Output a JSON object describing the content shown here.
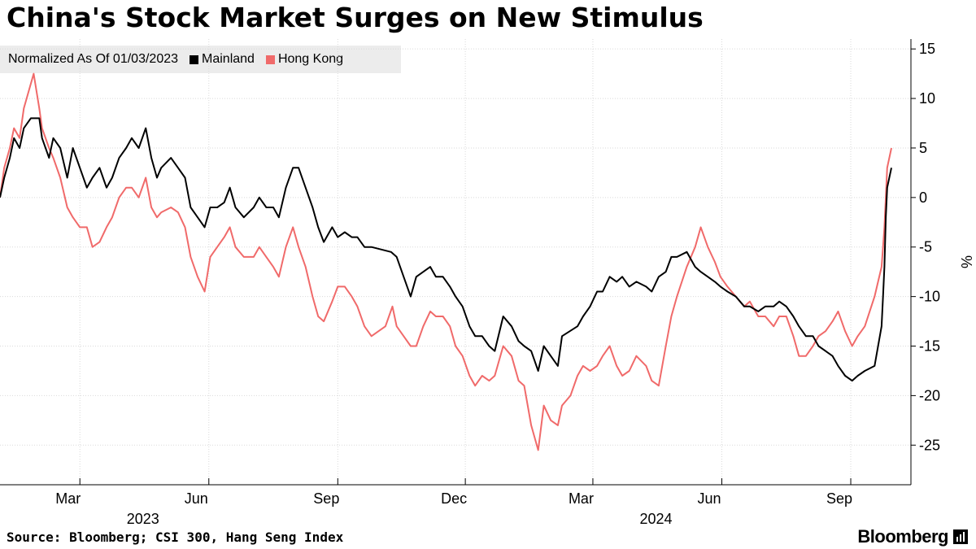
{
  "title": "China's Stock Market Surges on New Stimulus",
  "legend": {
    "note": "Normalized As Of 01/03/2023",
    "items": [
      {
        "label": "Mainland",
        "color": "#000000"
      },
      {
        "label": "Hong Kong",
        "color": "#f06a6a"
      }
    ]
  },
  "source": "Source: Bloomberg; CSI 300, Hang Seng Index",
  "brand": "Bloomberg",
  "chart_data": {
    "type": "line",
    "y_unit": "%",
    "ylim": [
      -29,
      16
    ],
    "yticks": [
      15,
      10,
      5,
      0,
      -5,
      -10,
      -15,
      -20,
      -25
    ],
    "xlim": [
      "2023-01-03",
      "2024-09-30"
    ],
    "xticks": [
      {
        "date": "2023-03-01",
        "label": "Mar"
      },
      {
        "date": "2023-06-01",
        "label": "Jun"
      },
      {
        "date": "2023-09-01",
        "label": "Sep"
      },
      {
        "date": "2023-12-01",
        "label": "Dec"
      },
      {
        "date": "2024-03-01",
        "label": "Mar"
      },
      {
        "date": "2024-06-01",
        "label": "Jun"
      },
      {
        "date": "2024-09-01",
        "label": "Sep"
      }
    ],
    "year_labels": [
      {
        "date": "2023-04-15",
        "label": "2023"
      },
      {
        "date": "2024-04-15",
        "label": "2024"
      }
    ],
    "grid": true,
    "series": [
      {
        "name": "Mainland",
        "color": "#000000",
        "points": [
          [
            "2023-01-03",
            0
          ],
          [
            "2023-01-06",
            2
          ],
          [
            "2023-01-10",
            4
          ],
          [
            "2023-01-13",
            6
          ],
          [
            "2023-01-17",
            5
          ],
          [
            "2023-01-20",
            7
          ],
          [
            "2023-01-25",
            8
          ],
          [
            "2023-01-31",
            8
          ],
          [
            "2023-02-02",
            6
          ],
          [
            "2023-02-07",
            4
          ],
          [
            "2023-02-10",
            6
          ],
          [
            "2023-02-15",
            5
          ],
          [
            "2023-02-20",
            2
          ],
          [
            "2023-02-24",
            5
          ],
          [
            "2023-03-01",
            3
          ],
          [
            "2023-03-06",
            1
          ],
          [
            "2023-03-10",
            2
          ],
          [
            "2023-03-15",
            3
          ],
          [
            "2023-03-20",
            1
          ],
          [
            "2023-03-24",
            2
          ],
          [
            "2023-03-29",
            4
          ],
          [
            "2023-04-03",
            5
          ],
          [
            "2023-04-07",
            6
          ],
          [
            "2023-04-12",
            5
          ],
          [
            "2023-04-17",
            7
          ],
          [
            "2023-04-21",
            4
          ],
          [
            "2023-04-25",
            2
          ],
          [
            "2023-04-28",
            3
          ],
          [
            "2023-05-05",
            4
          ],
          [
            "2023-05-10",
            3
          ],
          [
            "2023-05-15",
            2
          ],
          [
            "2023-05-19",
            -1
          ],
          [
            "2023-05-24",
            -2
          ],
          [
            "2023-05-29",
            -3
          ],
          [
            "2023-06-02",
            -1
          ],
          [
            "2023-06-07",
            -1
          ],
          [
            "2023-06-12",
            -0.5
          ],
          [
            "2023-06-16",
            1
          ],
          [
            "2023-06-20",
            -1
          ],
          [
            "2023-06-26",
            -2
          ],
          [
            "2023-07-03",
            -1
          ],
          [
            "2023-07-07",
            0
          ],
          [
            "2023-07-12",
            -1
          ],
          [
            "2023-07-17",
            -1
          ],
          [
            "2023-07-21",
            -2
          ],
          [
            "2023-07-26",
            1
          ],
          [
            "2023-07-31",
            3
          ],
          [
            "2023-08-04",
            3
          ],
          [
            "2023-08-09",
            1
          ],
          [
            "2023-08-14",
            -1
          ],
          [
            "2023-08-18",
            -3
          ],
          [
            "2023-08-22",
            -4.5
          ],
          [
            "2023-08-28",
            -3
          ],
          [
            "2023-09-01",
            -4
          ],
          [
            "2023-09-06",
            -3.5
          ],
          [
            "2023-09-11",
            -4
          ],
          [
            "2023-09-15",
            -4
          ],
          [
            "2023-09-20",
            -5
          ],
          [
            "2023-09-25",
            -5
          ],
          [
            "2023-10-09",
            -5.5
          ],
          [
            "2023-10-13",
            -6
          ],
          [
            "2023-10-18",
            -8
          ],
          [
            "2023-10-23",
            -10
          ],
          [
            "2023-10-27",
            -8
          ],
          [
            "2023-11-01",
            -7.5
          ],
          [
            "2023-11-06",
            -7
          ],
          [
            "2023-11-10",
            -8
          ],
          [
            "2023-11-15",
            -8
          ],
          [
            "2023-11-20",
            -9
          ],
          [
            "2023-11-24",
            -10
          ],
          [
            "2023-11-29",
            -11
          ],
          [
            "2023-12-04",
            -13
          ],
          [
            "2023-12-08",
            -14
          ],
          [
            "2023-12-13",
            -14
          ],
          [
            "2023-12-18",
            -15
          ],
          [
            "2023-12-22",
            -15.5
          ],
          [
            "2023-12-28",
            -12
          ],
          [
            "2024-01-03",
            -13
          ],
          [
            "2024-01-08",
            -14.5
          ],
          [
            "2024-01-12",
            -15
          ],
          [
            "2024-01-17",
            -15.5
          ],
          [
            "2024-01-22",
            -17.5
          ],
          [
            "2024-01-26",
            -15
          ],
          [
            "2024-01-31",
            -16
          ],
          [
            "2024-02-05",
            -17
          ],
          [
            "2024-02-08",
            -14
          ],
          [
            "2024-02-19",
            -13
          ],
          [
            "2024-02-23",
            -12
          ],
          [
            "2024-02-28",
            -11
          ],
          [
            "2024-03-04",
            -9.5
          ],
          [
            "2024-03-08",
            -9.5
          ],
          [
            "2024-03-13",
            -8
          ],
          [
            "2024-03-18",
            -8.5
          ],
          [
            "2024-03-22",
            -8
          ],
          [
            "2024-03-27",
            -9
          ],
          [
            "2024-04-01",
            -8.5
          ],
          [
            "2024-04-08",
            -9
          ],
          [
            "2024-04-12",
            -9.5
          ],
          [
            "2024-04-17",
            -8
          ],
          [
            "2024-04-22",
            -7.5
          ],
          [
            "2024-04-26",
            -6
          ],
          [
            "2024-04-30",
            -6
          ],
          [
            "2024-05-07",
            -5.5
          ],
          [
            "2024-05-13",
            -7
          ],
          [
            "2024-05-17",
            -7.5
          ],
          [
            "2024-05-22",
            -8
          ],
          [
            "2024-05-27",
            -8.5
          ],
          [
            "2024-05-31",
            -9
          ],
          [
            "2024-06-05",
            -9.5
          ],
          [
            "2024-06-11",
            -10
          ],
          [
            "2024-06-17",
            -11
          ],
          [
            "2024-06-21",
            -11
          ],
          [
            "2024-06-27",
            -11.5
          ],
          [
            "2024-07-02",
            -11
          ],
          [
            "2024-07-08",
            -11
          ],
          [
            "2024-07-12",
            -10.5
          ],
          [
            "2024-07-17",
            -11
          ],
          [
            "2024-07-22",
            -12
          ],
          [
            "2024-07-26",
            -13
          ],
          [
            "2024-07-31",
            -14
          ],
          [
            "2024-08-05",
            -14
          ],
          [
            "2024-08-09",
            -15
          ],
          [
            "2024-08-14",
            -15.5
          ],
          [
            "2024-08-19",
            -16
          ],
          [
            "2024-08-23",
            -17
          ],
          [
            "2024-08-28",
            -18
          ],
          [
            "2024-09-02",
            -18.5
          ],
          [
            "2024-09-06",
            -18
          ],
          [
            "2024-09-11",
            -17.5
          ],
          [
            "2024-09-18",
            -17
          ],
          [
            "2024-09-23",
            -13
          ],
          [
            "2024-09-24",
            -10
          ],
          [
            "2024-09-25",
            -7
          ],
          [
            "2024-09-26",
            -2
          ],
          [
            "2024-09-27",
            1
          ],
          [
            "2024-09-30",
            3
          ]
        ]
      },
      {
        "name": "Hong Kong",
        "color": "#f06a6a",
        "points": [
          [
            "2023-01-03",
            0
          ],
          [
            "2023-01-06",
            3
          ],
          [
            "2023-01-10",
            5
          ],
          [
            "2023-01-13",
            7
          ],
          [
            "2023-01-17",
            6
          ],
          [
            "2023-01-20",
            9
          ],
          [
            "2023-01-27",
            12.5
          ],
          [
            "2023-01-31",
            9
          ],
          [
            "2023-02-02",
            7
          ],
          [
            "2023-02-07",
            5
          ],
          [
            "2023-02-10",
            4
          ],
          [
            "2023-02-15",
            2
          ],
          [
            "2023-02-20",
            -1
          ],
          [
            "2023-02-24",
            -2
          ],
          [
            "2023-03-01",
            -3
          ],
          [
            "2023-03-06",
            -3
          ],
          [
            "2023-03-10",
            -5
          ],
          [
            "2023-03-15",
            -4.5
          ],
          [
            "2023-03-20",
            -3
          ],
          [
            "2023-03-24",
            -2
          ],
          [
            "2023-03-29",
            0
          ],
          [
            "2023-04-03",
            1
          ],
          [
            "2023-04-07",
            1
          ],
          [
            "2023-04-12",
            0
          ],
          [
            "2023-04-17",
            2
          ],
          [
            "2023-04-21",
            -1
          ],
          [
            "2023-04-25",
            -2
          ],
          [
            "2023-04-28",
            -1.5
          ],
          [
            "2023-05-05",
            -1
          ],
          [
            "2023-05-10",
            -1.5
          ],
          [
            "2023-05-15",
            -3
          ],
          [
            "2023-05-19",
            -6
          ],
          [
            "2023-05-24",
            -8
          ],
          [
            "2023-05-29",
            -9.5
          ],
          [
            "2023-06-02",
            -6
          ],
          [
            "2023-06-07",
            -5
          ],
          [
            "2023-06-12",
            -4
          ],
          [
            "2023-06-16",
            -3
          ],
          [
            "2023-06-20",
            -5
          ],
          [
            "2023-06-26",
            -6
          ],
          [
            "2023-07-03",
            -6
          ],
          [
            "2023-07-07",
            -5
          ],
          [
            "2023-07-12",
            -6
          ],
          [
            "2023-07-17",
            -7
          ],
          [
            "2023-07-21",
            -8
          ],
          [
            "2023-07-26",
            -5
          ],
          [
            "2023-07-31",
            -3
          ],
          [
            "2023-08-04",
            -5
          ],
          [
            "2023-08-09",
            -7
          ],
          [
            "2023-08-14",
            -10
          ],
          [
            "2023-08-18",
            -12
          ],
          [
            "2023-08-22",
            -12.5
          ],
          [
            "2023-08-28",
            -10.5
          ],
          [
            "2023-09-01",
            -9
          ],
          [
            "2023-09-06",
            -9
          ],
          [
            "2023-09-11",
            -10
          ],
          [
            "2023-09-15",
            -11
          ],
          [
            "2023-09-20",
            -13
          ],
          [
            "2023-09-25",
            -14
          ],
          [
            "2023-10-05",
            -13
          ],
          [
            "2023-10-10",
            -11
          ],
          [
            "2023-10-13",
            -13
          ],
          [
            "2023-10-18",
            -14
          ],
          [
            "2023-10-23",
            -15
          ],
          [
            "2023-10-27",
            -15
          ],
          [
            "2023-11-01",
            -13
          ],
          [
            "2023-11-06",
            -11.5
          ],
          [
            "2023-11-10",
            -12
          ],
          [
            "2023-11-15",
            -12
          ],
          [
            "2023-11-20",
            -13
          ],
          [
            "2023-11-24",
            -15
          ],
          [
            "2023-11-29",
            -16
          ],
          [
            "2023-12-04",
            -18
          ],
          [
            "2023-12-08",
            -19
          ],
          [
            "2023-12-13",
            -18
          ],
          [
            "2023-12-18",
            -18.5
          ],
          [
            "2023-12-22",
            -18
          ],
          [
            "2023-12-28",
            -15
          ],
          [
            "2024-01-03",
            -16
          ],
          [
            "2024-01-08",
            -18.5
          ],
          [
            "2024-01-12",
            -19
          ],
          [
            "2024-01-17",
            -23
          ],
          [
            "2024-01-22",
            -25.5
          ],
          [
            "2024-01-26",
            -21
          ],
          [
            "2024-01-31",
            -22.5
          ],
          [
            "2024-02-05",
            -23
          ],
          [
            "2024-02-08",
            -21
          ],
          [
            "2024-02-14",
            -20
          ],
          [
            "2024-02-19",
            -18
          ],
          [
            "2024-02-23",
            -17
          ],
          [
            "2024-02-28",
            -17.5
          ],
          [
            "2024-03-04",
            -17
          ],
          [
            "2024-03-08",
            -16
          ],
          [
            "2024-03-13",
            -15
          ],
          [
            "2024-03-18",
            -17
          ],
          [
            "2024-03-22",
            -18
          ],
          [
            "2024-03-27",
            -17.5
          ],
          [
            "2024-04-01",
            -16
          ],
          [
            "2024-04-08",
            -17
          ],
          [
            "2024-04-12",
            -18.5
          ],
          [
            "2024-04-17",
            -19
          ],
          [
            "2024-04-22",
            -15
          ],
          [
            "2024-04-26",
            -12
          ],
          [
            "2024-04-30",
            -10
          ],
          [
            "2024-05-07",
            -7
          ],
          [
            "2024-05-13",
            -5
          ],
          [
            "2024-05-17",
            -3
          ],
          [
            "2024-05-22",
            -5
          ],
          [
            "2024-05-27",
            -6.5
          ],
          [
            "2024-05-31",
            -8
          ],
          [
            "2024-06-05",
            -9
          ],
          [
            "2024-06-11",
            -10
          ],
          [
            "2024-06-17",
            -11
          ],
          [
            "2024-06-21",
            -10.5
          ],
          [
            "2024-06-27",
            -12
          ],
          [
            "2024-07-02",
            -12
          ],
          [
            "2024-07-08",
            -13
          ],
          [
            "2024-07-12",
            -12
          ],
          [
            "2024-07-17",
            -12
          ],
          [
            "2024-07-22",
            -14
          ],
          [
            "2024-07-26",
            -16
          ],
          [
            "2024-07-31",
            -16
          ],
          [
            "2024-08-05",
            -15
          ],
          [
            "2024-08-09",
            -14
          ],
          [
            "2024-08-14",
            -13.5
          ],
          [
            "2024-08-19",
            -12.5
          ],
          [
            "2024-08-23",
            -11.5
          ],
          [
            "2024-08-28",
            -13.5
          ],
          [
            "2024-09-02",
            -15
          ],
          [
            "2024-09-06",
            -14
          ],
          [
            "2024-09-11",
            -13
          ],
          [
            "2024-09-18",
            -10
          ],
          [
            "2024-09-23",
            -7
          ],
          [
            "2024-09-24",
            -5
          ],
          [
            "2024-09-25",
            -3
          ],
          [
            "2024-09-26",
            0
          ],
          [
            "2024-09-27",
            3
          ],
          [
            "2024-09-30",
            5
          ]
        ]
      }
    ]
  }
}
